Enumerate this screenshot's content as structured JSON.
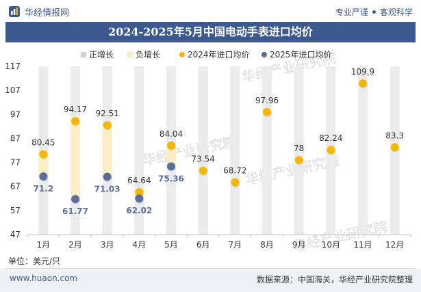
{
  "header": {
    "brand": "华经情报网",
    "tag1": "专业严谨",
    "tag2": "客观科学"
  },
  "watermark": {
    "cn": "华经产业研究院",
    "url": "www.huaon.com"
  },
  "footer": {
    "unit": "单位：美元/只",
    "site": "www.huaon.com",
    "source": "数据来源：中国海关，华经产业研究院整理"
  },
  "colors": {
    "title_bg": "#3d5a8f",
    "series_2024": "#f5b800",
    "series_2025": "#5b6e9b",
    "increase_band": "#d0d0d0",
    "decrease_band": "#fbeec4",
    "column_bg": "#ebebeb"
  },
  "chart_data": {
    "type": "line",
    "title": "2024-2025年5月中国电动手表进口均价",
    "categories": [
      "1月",
      "2月",
      "3月",
      "4月",
      "5月",
      "6月",
      "7月",
      "8月",
      "9月",
      "10月",
      "11月",
      "12月"
    ],
    "series": [
      {
        "name": "2024年进口均价",
        "values": [
          80.45,
          94.17,
          92.51,
          64.64,
          84.04,
          73.54,
          68.72,
          97.96,
          78,
          82.24,
          109.9,
          83.3
        ]
      },
      {
        "name": "2025年进口均价",
        "values": [
          71.2,
          61.77,
          71.03,
          62.02,
          75.36,
          null,
          null,
          null,
          null,
          null,
          null,
          null
        ]
      }
    ],
    "bands": [
      {
        "name": "正增长"
      },
      {
        "name": "负增长"
      }
    ],
    "ylim": [
      47,
      117
    ],
    "yticks": [
      47,
      57,
      67,
      77,
      87,
      97,
      107,
      117
    ],
    "legend": "top-center",
    "grid": false
  }
}
